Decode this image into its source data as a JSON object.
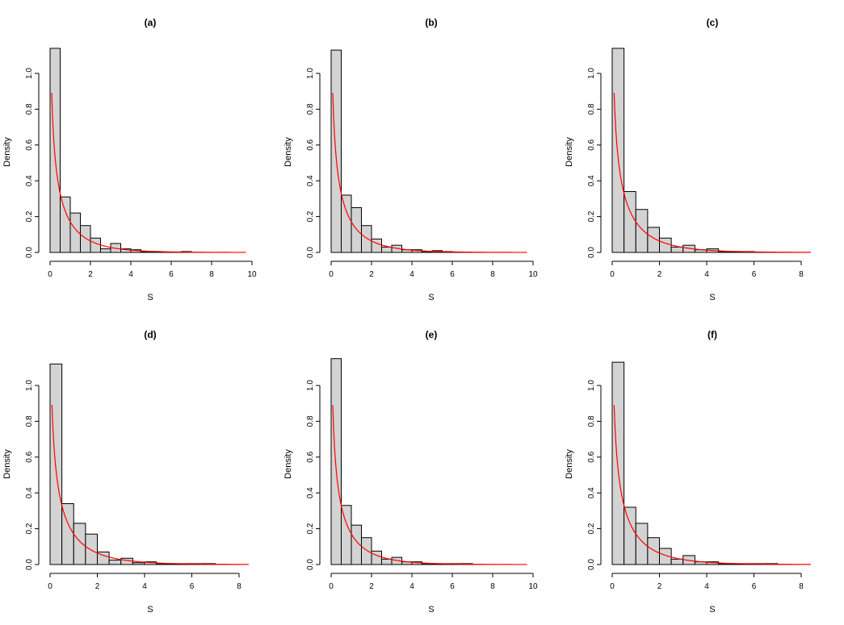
{
  "chart_data": [
    {
      "type": "bar",
      "title": "(a)",
      "xlabel": "S",
      "ylabel": "Density",
      "xlim": [
        0,
        10
      ],
      "ylim": [
        0,
        1.1
      ],
      "x_ticks": [
        "0",
        "2",
        "4",
        "6",
        "8",
        "10"
      ],
      "y_ticks": [
        "0.0",
        "0.2",
        "0.4",
        "0.6",
        "0.8",
        "1.0"
      ],
      "bin_width": 0.5,
      "bin_starts": [
        0,
        0.5,
        1,
        1.5,
        2,
        2.5,
        3,
        3.5,
        4,
        4.5,
        5,
        5.5,
        6,
        6.5
      ],
      "values": [
        1.14,
        0.31,
        0.22,
        0.15,
        0.08,
        0.02,
        0.05,
        0.02,
        0.015,
        0.005,
        0.005,
        0.0,
        0.0,
        0.005
      ],
      "density_curve": {
        "color": "#ff0000",
        "x_max": 9.7
      },
      "grid": false
    },
    {
      "type": "bar",
      "title": "(b)",
      "xlabel": "S",
      "ylabel": "Density",
      "xlim": [
        0,
        10
      ],
      "ylim": [
        0,
        1.1
      ],
      "x_ticks": [
        "0",
        "2",
        "4",
        "6",
        "8",
        "10"
      ],
      "y_ticks": [
        "0.0",
        "0.2",
        "0.4",
        "0.6",
        "0.8",
        "1.0"
      ],
      "bin_width": 0.5,
      "bin_starts": [
        0,
        0.5,
        1,
        1.5,
        2,
        2.5,
        3,
        3.5,
        4,
        4.5,
        5,
        5.5
      ],
      "values": [
        1.13,
        0.32,
        0.25,
        0.15,
        0.075,
        0.03,
        0.04,
        0.015,
        0.015,
        0.005,
        0.01,
        0.005
      ],
      "density_curve": {
        "color": "#ff0000",
        "x_max": 9.7
      },
      "grid": false
    },
    {
      "type": "bar",
      "title": "(c)",
      "xlabel": "S",
      "ylabel": "Density",
      "xlim": [
        0,
        8
      ],
      "ylim": [
        0,
        1.1
      ],
      "x_ticks": [
        "0",
        "2",
        "4",
        "6",
        "8"
      ],
      "y_ticks": [
        "0.0",
        "0.2",
        "0.4",
        "0.6",
        "0.8",
        "1.0"
      ],
      "bin_width": 0.5,
      "bin_starts": [
        0,
        0.5,
        1,
        1.5,
        2,
        2.5,
        3,
        3.5,
        4,
        4.5,
        5,
        5.5
      ],
      "values": [
        1.14,
        0.34,
        0.24,
        0.14,
        0.08,
        0.03,
        0.04,
        0.015,
        0.02,
        0.005,
        0.005,
        0.005
      ],
      "density_curve": {
        "color": "#ff0000",
        "x_max": 8.4
      },
      "grid": false
    },
    {
      "type": "bar",
      "title": "(d)",
      "xlabel": "S",
      "ylabel": "Density",
      "xlim": [
        0,
        8
      ],
      "ylim": [
        0,
        1.1
      ],
      "x_ticks": [
        "0",
        "2",
        "4",
        "6",
        "8"
      ],
      "y_ticks": [
        "0.0",
        "0.2",
        "0.4",
        "0.6",
        "0.8",
        "1.0"
      ],
      "bin_width": 0.5,
      "bin_starts": [
        0,
        0.5,
        1,
        1.5,
        2,
        2.5,
        3,
        3.5,
        4,
        4.5,
        5,
        5.5,
        6,
        6.5
      ],
      "values": [
        1.12,
        0.34,
        0.23,
        0.17,
        0.07,
        0.025,
        0.035,
        0.01,
        0.015,
        0.005,
        0.005,
        0.005,
        0.005,
        0.005
      ],
      "density_curve": {
        "color": "#ff0000",
        "x_max": 8.4
      },
      "grid": false
    },
    {
      "type": "bar",
      "title": "(e)",
      "xlabel": "S",
      "ylabel": "Density",
      "xlim": [
        0,
        10
      ],
      "ylim": [
        0,
        1.1
      ],
      "x_ticks": [
        "0",
        "2",
        "4",
        "6",
        "8",
        "10"
      ],
      "y_ticks": [
        "0.0",
        "0.2",
        "0.4",
        "0.6",
        "0.8",
        "1.0"
      ],
      "bin_width": 0.5,
      "bin_starts": [
        0,
        0.5,
        1,
        1.5,
        2,
        2.5,
        3,
        3.5,
        4,
        4.5,
        5,
        5.5,
        6,
        6.5
      ],
      "values": [
        1.15,
        0.33,
        0.22,
        0.15,
        0.075,
        0.03,
        0.04,
        0.015,
        0.015,
        0.005,
        0.005,
        0.005,
        0.005,
        0.005
      ],
      "density_curve": {
        "color": "#ff0000",
        "x_max": 9.7
      },
      "grid": false
    },
    {
      "type": "bar",
      "title": "(f)",
      "xlabel": "S",
      "ylabel": "Density",
      "xlim": [
        0,
        8
      ],
      "ylim": [
        0,
        1.1
      ],
      "x_ticks": [
        "0",
        "2",
        "4",
        "6",
        "8"
      ],
      "y_ticks": [
        "0.0",
        "0.2",
        "0.4",
        "0.6",
        "0.8",
        "1.0"
      ],
      "bin_width": 0.5,
      "bin_starts": [
        0,
        0.5,
        1,
        1.5,
        2,
        2.5,
        3,
        3.5,
        4,
        4.5,
        5,
        5.5,
        6,
        6.5
      ],
      "values": [
        1.13,
        0.32,
        0.23,
        0.15,
        0.09,
        0.03,
        0.05,
        0.015,
        0.015,
        0.005,
        0.005,
        0.005,
        0.005,
        0.005
      ],
      "density_curve": {
        "color": "#ff0000",
        "x_max": 8.4
      },
      "grid": false
    }
  ],
  "style": {
    "bar_fill": "#d3d3d3",
    "bar_stroke": "#000000",
    "curve_color": "#ff0000"
  }
}
